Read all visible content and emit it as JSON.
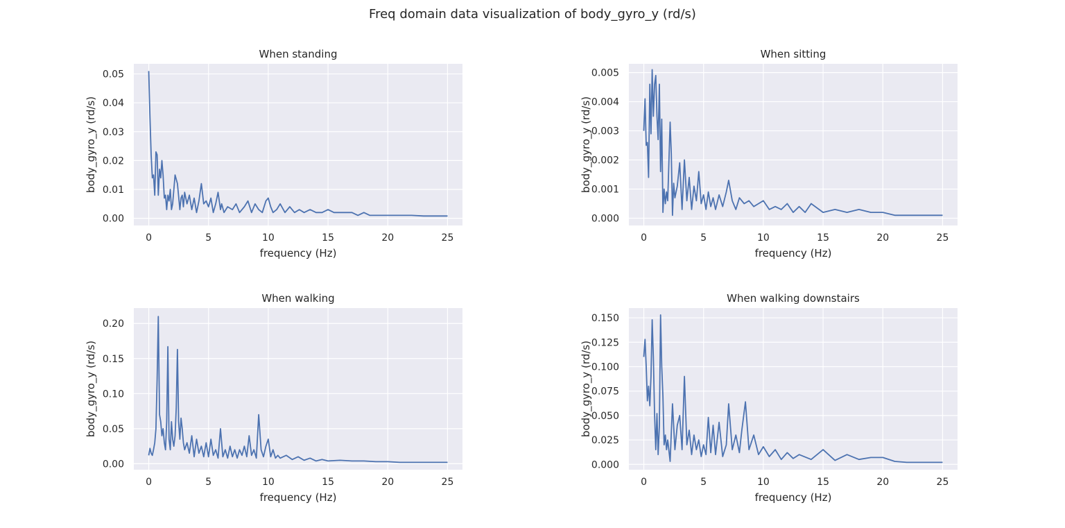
{
  "figure": {
    "suptitle": "Freq domain data visualization of body_gyro_y (rd/s)"
  },
  "style": {
    "plot_background": "#eaeaf2",
    "grid_color": "#ffffff",
    "line_color": "#4c72b0",
    "text_color": "#262626"
  },
  "chart_data": [
    {
      "type": "line",
      "title": "When standing",
      "xlabel": "frequency (Hz)",
      "ylabel": "body_gyro_y (rd/s)",
      "xlim": [
        -1.25,
        26.25
      ],
      "ylim": [
        -0.0025,
        0.0535
      ],
      "xticks": [
        0,
        5,
        10,
        15,
        20,
        25
      ],
      "xtick_labels": [
        "0",
        "5",
        "10",
        "15",
        "20",
        "25"
      ],
      "yticks": [
        0,
        0.01,
        0.02,
        0.03,
        0.04,
        0.05
      ],
      "ytick_labels": [
        "0.00",
        "0.01",
        "0.02",
        "0.03",
        "0.04",
        "0.05"
      ],
      "grid": true,
      "series": [
        {
          "x": [
            0,
            0.1,
            0.2,
            0.3,
            0.4,
            0.5,
            0.6,
            0.7,
            0.8,
            0.9,
            1.0,
            1.1,
            1.2,
            1.3,
            1.4,
            1.5,
            1.6,
            1.7,
            1.8,
            1.9,
            2.0,
            2.2,
            2.4,
            2.6,
            2.7,
            2.8,
            2.9,
            3.0,
            3.2,
            3.4,
            3.6,
            3.8,
            4.0,
            4.2,
            4.4,
            4.6,
            4.8,
            5.0,
            5.2,
            5.4,
            5.6,
            5.8,
            6.0,
            6.1,
            6.3,
            6.6,
            7.0,
            7.3,
            7.6,
            8.0,
            8.3,
            8.6,
            8.9,
            9.2,
            9.5,
            9.8,
            10.0,
            10.2,
            10.4,
            10.7,
            11.0,
            11.4,
            11.8,
            12.2,
            12.6,
            13.0,
            13.5,
            14.0,
            14.5,
            15.0,
            15.5,
            16.0,
            16.5,
            17.0,
            17.5,
            18.0,
            18.5,
            19.0,
            19.5,
            20.0,
            21.0,
            22.0,
            23.0,
            24.0,
            25.0
          ],
          "y": [
            0.051,
            0.035,
            0.022,
            0.014,
            0.015,
            0.008,
            0.023,
            0.022,
            0.008,
            0.017,
            0.014,
            0.02,
            0.015,
            0.007,
            0.008,
            0.003,
            0.008,
            0.006,
            0.01,
            0.003,
            0.005,
            0.015,
            0.012,
            0.003,
            0.007,
            0.008,
            0.004,
            0.009,
            0.005,
            0.008,
            0.003,
            0.007,
            0.002,
            0.006,
            0.012,
            0.005,
            0.006,
            0.004,
            0.007,
            0.002,
            0.005,
            0.009,
            0.003,
            0.005,
            0.002,
            0.004,
            0.003,
            0.005,
            0.002,
            0.004,
            0.006,
            0.002,
            0.005,
            0.003,
            0.002,
            0.006,
            0.007,
            0.004,
            0.002,
            0.003,
            0.005,
            0.002,
            0.004,
            0.002,
            0.003,
            0.002,
            0.003,
            0.002,
            0.002,
            0.003,
            0.002,
            0.002,
            0.002,
            0.002,
            0.001,
            0.002,
            0.001,
            0.001,
            0.001,
            0.001,
            0.001,
            0.001,
            0.0008,
            0.0008,
            0.0008
          ]
        }
      ]
    },
    {
      "type": "line",
      "title": "When sitting",
      "xlabel": "frequency (Hz)",
      "ylabel": "body_gyro_y (rd/s)",
      "xlim": [
        -1.25,
        26.25
      ],
      "ylim": [
        -0.00025,
        0.0053
      ],
      "xticks": [
        0,
        5,
        10,
        15,
        20,
        25
      ],
      "xtick_labels": [
        "0",
        "5",
        "10",
        "15",
        "20",
        "25"
      ],
      "yticks": [
        0,
        0.001,
        0.002,
        0.003,
        0.004,
        0.005
      ],
      "ytick_labels": [
        "0.000",
        "0.001",
        "0.002",
        "0.003",
        "0.004",
        "0.005"
      ],
      "grid": true,
      "series": [
        {
          "x": [
            0,
            0.1,
            0.2,
            0.3,
            0.4,
            0.5,
            0.6,
            0.7,
            0.8,
            0.9,
            1.0,
            1.1,
            1.2,
            1.3,
            1.4,
            1.5,
            1.6,
            1.7,
            1.8,
            1.9,
            2.0,
            2.2,
            2.3,
            2.4,
            2.5,
            2.6,
            2.8,
            3.0,
            3.2,
            3.4,
            3.6,
            3.8,
            4.0,
            4.2,
            4.4,
            4.6,
            4.8,
            5.0,
            5.2,
            5.4,
            5.6,
            5.8,
            6.0,
            6.3,
            6.6,
            6.9,
            7.1,
            7.4,
            7.7,
            8.0,
            8.4,
            8.8,
            9.2,
            9.6,
            10.0,
            10.5,
            11.0,
            11.5,
            12.0,
            12.5,
            13.0,
            13.5,
            14.0,
            15.0,
            16.0,
            17.0,
            18.0,
            19.0,
            20.0,
            21.0,
            22.0,
            23.0,
            24.0,
            25.0
          ],
          "y": [
            0.003,
            0.0041,
            0.0025,
            0.0026,
            0.0014,
            0.0046,
            0.0029,
            0.0051,
            0.0035,
            0.0046,
            0.0049,
            0.0035,
            0.0027,
            0.0046,
            0.0016,
            0.0034,
            0.0002,
            0.001,
            0.0005,
            0.0009,
            0.0006,
            0.0033,
            0.0022,
            0.0001,
            0.0012,
            0.0007,
            0.0011,
            0.0019,
            0.0003,
            0.002,
            0.0006,
            0.0014,
            0.0003,
            0.0011,
            0.0006,
            0.0016,
            0.0005,
            0.0008,
            0.0003,
            0.0009,
            0.0004,
            0.0007,
            0.0003,
            0.0008,
            0.0004,
            0.0009,
            0.0013,
            0.0006,
            0.0003,
            0.0007,
            0.0005,
            0.0006,
            0.0004,
            0.0005,
            0.0006,
            0.0003,
            0.0004,
            0.0003,
            0.0005,
            0.0002,
            0.0004,
            0.0002,
            0.0005,
            0.0002,
            0.0003,
            0.0002,
            0.0003,
            0.0002,
            0.0002,
            0.0001,
            0.0001,
            0.0001,
            0.0001,
            0.0001
          ]
        }
      ]
    },
    {
      "type": "line",
      "title": "When walking",
      "xlabel": "frequency (Hz)",
      "ylabel": "body_gyro_y (rd/s)",
      "xlim": [
        -1.25,
        26.25
      ],
      "ylim": [
        -0.0085,
        0.222
      ],
      "xticks": [
        0,
        5,
        10,
        15,
        20,
        25
      ],
      "xtick_labels": [
        "0",
        "5",
        "10",
        "15",
        "20",
        "25"
      ],
      "yticks": [
        0,
        0.05,
        0.1,
        0.15,
        0.2
      ],
      "ytick_labels": [
        "0.00",
        "0.05",
        "0.10",
        "0.15",
        "0.20"
      ],
      "grid": true,
      "series": [
        {
          "x": [
            0,
            0.1,
            0.2,
            0.3,
            0.4,
            0.5,
            0.6,
            0.7,
            0.8,
            0.9,
            1.0,
            1.1,
            1.2,
            1.3,
            1.4,
            1.5,
            1.6,
            1.7,
            1.8,
            1.9,
            2.0,
            2.1,
            2.2,
            2.3,
            2.4,
            2.5,
            2.6,
            2.7,
            2.8,
            2.9,
            3.0,
            3.2,
            3.4,
            3.6,
            3.8,
            4.0,
            4.2,
            4.4,
            4.6,
            4.8,
            5.0,
            5.2,
            5.4,
            5.6,
            5.8,
            6.0,
            6.2,
            6.4,
            6.6,
            6.8,
            7.0,
            7.2,
            7.4,
            7.6,
            7.8,
            8.0,
            8.2,
            8.4,
            8.6,
            8.8,
            9.0,
            9.2,
            9.4,
            9.6,
            9.8,
            10.0,
            10.2,
            10.4,
            10.6,
            10.8,
            11.0,
            11.5,
            12.0,
            12.5,
            13.0,
            13.5,
            14.0,
            14.5,
            15.0,
            16.0,
            17.0,
            18.0,
            19.0,
            20.0,
            21.0,
            22.0,
            23.0,
            24.0,
            25.0
          ],
          "y": [
            0.012,
            0.022,
            0.015,
            0.012,
            0.02,
            0.03,
            0.05,
            0.12,
            0.21,
            0.07,
            0.06,
            0.04,
            0.05,
            0.03,
            0.02,
            0.06,
            0.167,
            0.035,
            0.02,
            0.06,
            0.035,
            0.025,
            0.04,
            0.08,
            0.163,
            0.06,
            0.035,
            0.065,
            0.05,
            0.03,
            0.02,
            0.03,
            0.015,
            0.04,
            0.01,
            0.035,
            0.015,
            0.025,
            0.01,
            0.03,
            0.01,
            0.035,
            0.012,
            0.02,
            0.008,
            0.05,
            0.01,
            0.02,
            0.008,
            0.025,
            0.01,
            0.02,
            0.008,
            0.02,
            0.012,
            0.025,
            0.01,
            0.04,
            0.012,
            0.02,
            0.008,
            0.07,
            0.02,
            0.01,
            0.025,
            0.035,
            0.01,
            0.02,
            0.008,
            0.012,
            0.008,
            0.012,
            0.006,
            0.01,
            0.005,
            0.008,
            0.004,
            0.006,
            0.004,
            0.005,
            0.004,
            0.004,
            0.003,
            0.003,
            0.002,
            0.002,
            0.002,
            0.002,
            0.002
          ]
        }
      ]
    },
    {
      "type": "line",
      "title": "When walking downstairs",
      "xlabel": "frequency (Hz)",
      "ylabel": "body_gyro_y (rd/s)",
      "xlim": [
        -1.25,
        26.25
      ],
      "ylim": [
        -0.0055,
        0.16
      ],
      "xticks": [
        0,
        5,
        10,
        15,
        20,
        25
      ],
      "xtick_labels": [
        "0",
        "5",
        "10",
        "15",
        "20",
        "25"
      ],
      "yticks": [
        0,
        0.025,
        0.05,
        0.075,
        0.1,
        0.125,
        0.15
      ],
      "ytick_labels": [
        "0.000",
        "0.025",
        "0.050",
        "0.075",
        "0.100",
        "0.125",
        "0.150"
      ],
      "grid": true,
      "series": [
        {
          "x": [
            0,
            0.1,
            0.2,
            0.3,
            0.4,
            0.5,
            0.6,
            0.7,
            0.8,
            0.9,
            1.0,
            1.1,
            1.2,
            1.3,
            1.4,
            1.5,
            1.6,
            1.7,
            1.8,
            1.9,
            2.0,
            2.2,
            2.4,
            2.6,
            2.8,
            3.0,
            3.2,
            3.4,
            3.6,
            3.8,
            4.0,
            4.2,
            4.4,
            4.6,
            4.8,
            5.0,
            5.2,
            5.4,
            5.6,
            5.8,
            6.0,
            6.3,
            6.6,
            6.9,
            7.1,
            7.4,
            7.7,
            8.0,
            8.2,
            8.5,
            8.8,
            9.2,
            9.6,
            10.0,
            10.5,
            11.0,
            11.5,
            12.0,
            12.5,
            13.0,
            14.0,
            15.0,
            16.0,
            17.0,
            18.0,
            19.0,
            20.0,
            21.0,
            22.0,
            23.0,
            24.0,
            25.0
          ],
          "y": [
            0.11,
            0.128,
            0.1,
            0.065,
            0.08,
            0.06,
            0.09,
            0.148,
            0.11,
            0.05,
            0.015,
            0.052,
            0.01,
            0.04,
            0.153,
            0.1,
            0.07,
            0.02,
            0.03,
            0.015,
            0.025,
            0.003,
            0.062,
            0.015,
            0.04,
            0.05,
            0.015,
            0.09,
            0.02,
            0.035,
            0.01,
            0.03,
            0.015,
            0.025,
            0.008,
            0.02,
            0.01,
            0.048,
            0.012,
            0.04,
            0.01,
            0.043,
            0.008,
            0.02,
            0.062,
            0.015,
            0.03,
            0.012,
            0.035,
            0.064,
            0.015,
            0.03,
            0.01,
            0.018,
            0.008,
            0.015,
            0.005,
            0.012,
            0.006,
            0.01,
            0.005,
            0.015,
            0.004,
            0.01,
            0.005,
            0.007,
            0.007,
            0.003,
            0.002,
            0.002,
            0.002,
            0.002
          ]
        }
      ]
    }
  ]
}
